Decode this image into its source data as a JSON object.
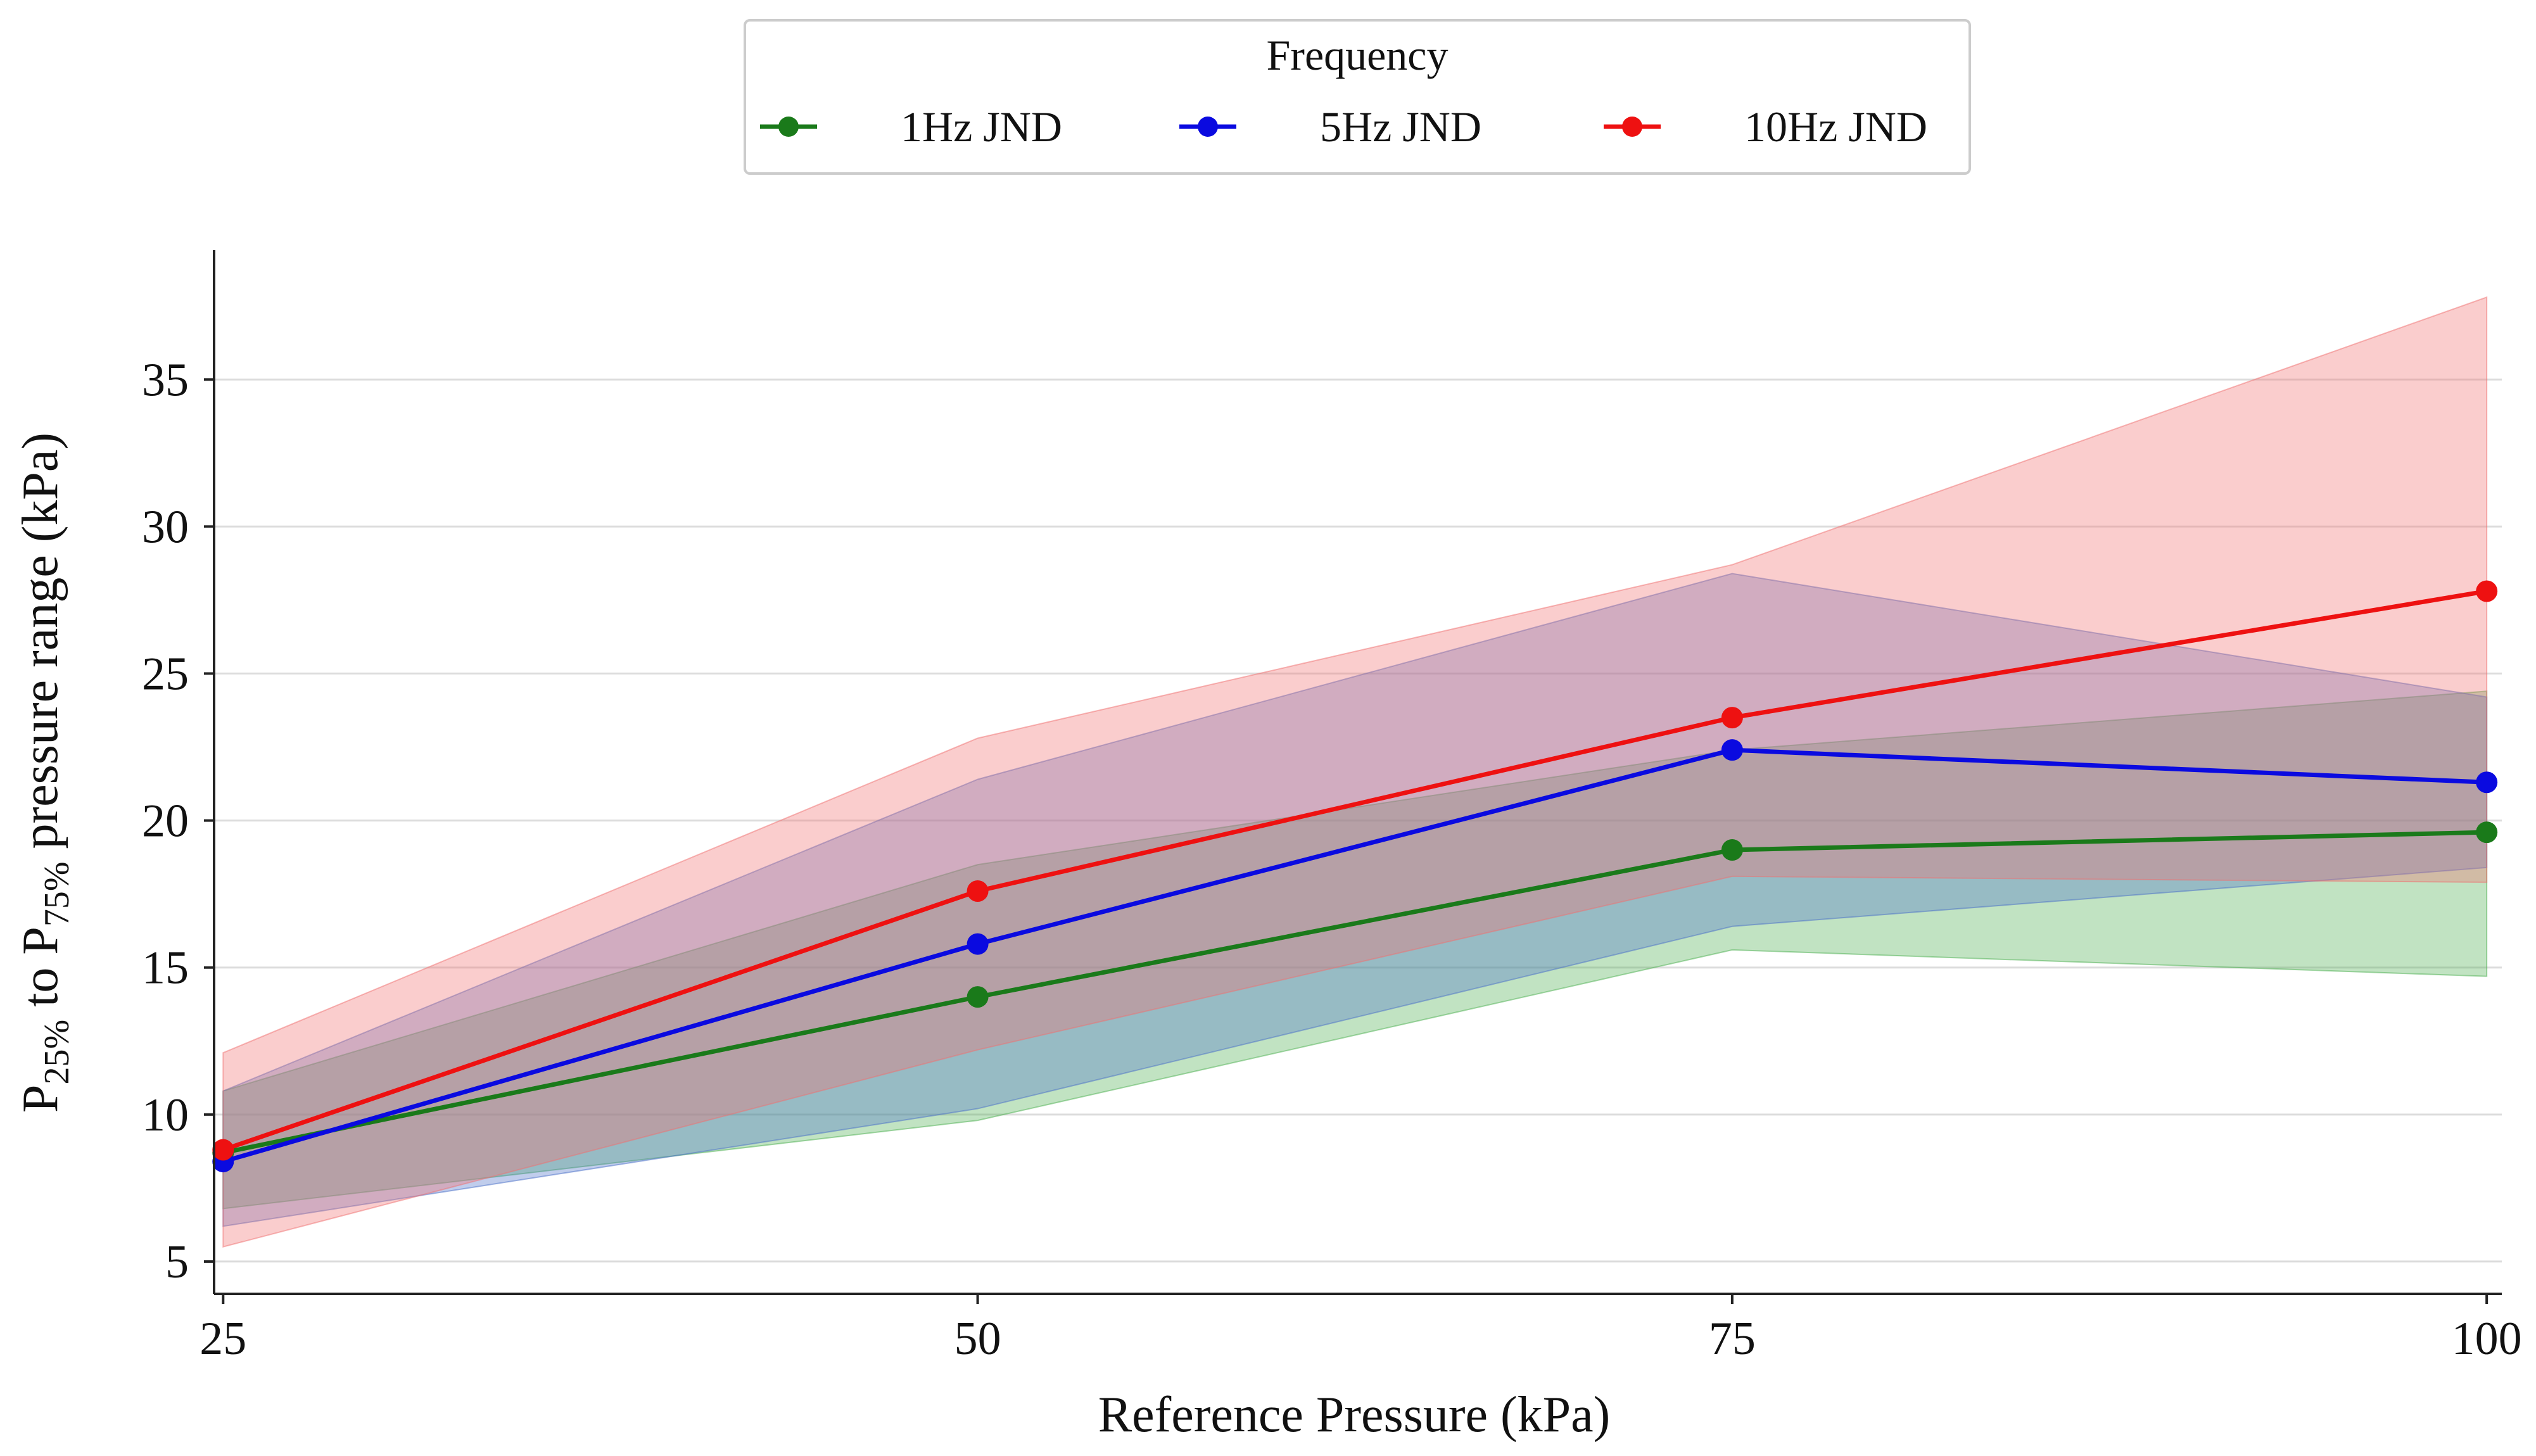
{
  "chart_data": {
    "type": "line",
    "title": "",
    "xlabel": "Reference  Pressure  (kPa)",
    "ylabel": {
      "p": "P",
      "sub1": "25%",
      "to": " to ",
      "p2": "P",
      "sub2": "75%",
      "rest": " pressure range (kPa)"
    },
    "x": [
      25,
      50,
      75,
      100
    ],
    "xticks": [
      "25",
      "50",
      "75",
      "100"
    ],
    "yticks": [
      "5",
      "10",
      "15",
      "20",
      "25",
      "30",
      "35"
    ],
    "ytick_values": [
      5,
      10,
      15,
      20,
      25,
      30,
      35
    ],
    "xlim": [
      24.7,
      100.5
    ],
    "ylim": [
      3.9,
      39.4
    ],
    "grid": "horizontal",
    "legend": {
      "title": "Frequency",
      "placement": "top-center"
    },
    "series": [
      {
        "name": "1Hz JND",
        "color": "#1a7a1a",
        "band_color": "#4caf50",
        "values": [
          8.7,
          14.0,
          19.0,
          19.6
        ],
        "lower": [
          6.8,
          9.8,
          15.6,
          14.7
        ],
        "upper": [
          10.8,
          18.5,
          22.4,
          24.4
        ]
      },
      {
        "name": "5Hz JND",
        "color": "#0a0ae0",
        "band_color": "#4a6fc8",
        "values": [
          8.4,
          15.8,
          22.4,
          21.3
        ],
        "lower": [
          6.2,
          10.2,
          16.4,
          18.4
        ],
        "upper": [
          10.8,
          21.4,
          28.4,
          24.2
        ]
      },
      {
        "name": "10Hz JND",
        "color": "#ee1111",
        "band_color": "#f07070",
        "values": [
          8.8,
          17.6,
          23.5,
          27.8
        ],
        "lower": [
          5.5,
          12.2,
          18.1,
          17.9
        ],
        "upper": [
          12.1,
          22.8,
          28.7,
          37.8
        ]
      }
    ]
  }
}
